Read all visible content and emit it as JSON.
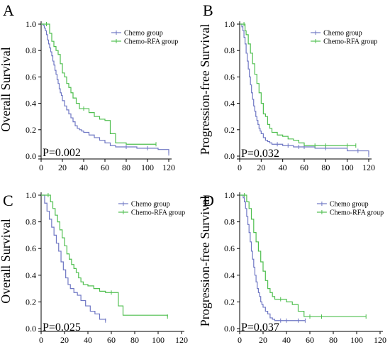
{
  "colors": {
    "chemo": "#6f77c4",
    "chemo_rfa": "#4fbf4f",
    "axis": "#000000"
  },
  "chart_data": [
    {
      "type": "line",
      "panel_letter": "A",
      "ylabel": "Overall Survival",
      "p_value": "P=0.002",
      "xlim": [
        0,
        120
      ],
      "ylim": [
        0,
        1.0
      ],
      "x_ticks": [
        "0",
        "20",
        "40",
        "60",
        "80",
        "100",
        "120"
      ],
      "y_ticks": [
        "0.0",
        "0.2",
        "0.4",
        "0.6",
        "0.8",
        "1.0"
      ],
      "legend_position": "top-right",
      "series": [
        {
          "name": "Chemo group",
          "color_key": "chemo",
          "x": [
            0,
            2,
            3,
            4,
            5,
            6,
            7,
            8,
            9,
            10,
            11,
            12,
            13,
            14,
            15,
            16,
            17,
            18,
            19,
            20,
            22,
            24,
            26,
            28,
            30,
            32,
            34,
            36,
            38,
            40,
            45,
            50,
            55,
            60,
            65,
            70,
            80,
            90,
            100,
            110,
            120
          ],
          "y": [
            1.0,
            0.99,
            0.97,
            0.95,
            0.92,
            0.88,
            0.85,
            0.82,
            0.79,
            0.76,
            0.72,
            0.69,
            0.65,
            0.62,
            0.58,
            0.55,
            0.51,
            0.48,
            0.46,
            0.42,
            0.38,
            0.35,
            0.32,
            0.29,
            0.26,
            0.23,
            0.21,
            0.2,
            0.19,
            0.18,
            0.16,
            0.14,
            0.12,
            0.1,
            0.08,
            0.07,
            0.07,
            0.06,
            0.06,
            0.05,
            0.02
          ]
        },
        {
          "name": "Chemo-RFA group",
          "color_key": "chemo_rfa",
          "x": [
            0,
            5,
            8,
            10,
            12,
            14,
            16,
            18,
            20,
            22,
            24,
            26,
            28,
            30,
            33,
            36,
            40,
            45,
            50,
            55,
            60,
            65,
            70,
            80,
            108
          ],
          "y": [
            1.0,
            1.0,
            0.93,
            0.87,
            0.83,
            0.8,
            0.77,
            0.7,
            0.63,
            0.6,
            0.55,
            0.52,
            0.48,
            0.44,
            0.4,
            0.36,
            0.36,
            0.33,
            0.3,
            0.28,
            0.27,
            0.17,
            0.1,
            0.09,
            0.09
          ]
        }
      ]
    },
    {
      "type": "line",
      "panel_letter": "B",
      "ylabel": "Progression-free Survival",
      "p_value": "P=0.032",
      "xlim": [
        0,
        120
      ],
      "ylim": [
        0,
        1.0
      ],
      "x_ticks": [
        "0",
        "20",
        "40",
        "60",
        "80",
        "100",
        "120"
      ],
      "y_ticks": [
        "0.0",
        "0.2",
        "0.4",
        "0.6",
        "0.8",
        "1.0"
      ],
      "legend_position": "top-right",
      "series": [
        {
          "name": "Chemo group",
          "color_key": "chemo",
          "x": [
            0,
            2,
            3,
            4,
            5,
            6,
            7,
            8,
            9,
            10,
            11,
            12,
            13,
            14,
            15,
            16,
            17,
            18,
            19,
            20,
            22,
            24,
            26,
            28,
            30,
            35,
            40,
            45,
            50,
            55,
            60,
            70,
            80,
            100,
            110,
            120
          ],
          "y": [
            1.0,
            0.98,
            0.95,
            0.9,
            0.85,
            0.78,
            0.72,
            0.66,
            0.6,
            0.54,
            0.48,
            0.43,
            0.38,
            0.34,
            0.3,
            0.27,
            0.24,
            0.21,
            0.19,
            0.17,
            0.14,
            0.12,
            0.11,
            0.1,
            0.09,
            0.09,
            0.08,
            0.08,
            0.07,
            0.07,
            0.07,
            0.06,
            0.06,
            0.04,
            0.04,
            0.01
          ]
        },
        {
          "name": "Chemo-RFA group",
          "color_key": "chemo_rfa",
          "x": [
            0,
            4,
            5,
            6,
            8,
            10,
            12,
            14,
            16,
            18,
            20,
            22,
            24,
            26,
            28,
            30,
            35,
            40,
            45,
            50,
            55,
            60,
            70,
            80,
            100,
            108
          ],
          "y": [
            1.0,
            1.0,
            0.95,
            0.92,
            0.85,
            0.78,
            0.7,
            0.62,
            0.55,
            0.48,
            0.4,
            0.32,
            0.3,
            0.24,
            0.21,
            0.18,
            0.16,
            0.15,
            0.13,
            0.12,
            0.1,
            0.08,
            0.08,
            0.08,
            0.08,
            0.08
          ]
        }
      ]
    },
    {
      "type": "line",
      "panel_letter": "C",
      "ylabel": "Overall Survival",
      "p_value": "P=0.025",
      "xlim": [
        0,
        120
      ],
      "ylim": [
        0,
        1.0
      ],
      "x_ticks": [
        "0",
        "20",
        "40",
        "60",
        "80",
        "100",
        "120"
      ],
      "y_ticks": [
        "0.0",
        "0.2",
        "0.4",
        "0.6",
        "0.8",
        "1.0"
      ],
      "legend_position": "top-right",
      "series": [
        {
          "name": "Chemo group",
          "color_key": "chemo",
          "x": [
            0,
            3,
            5,
            7,
            9,
            11,
            13,
            15,
            17,
            19,
            21,
            23,
            25,
            28,
            31,
            34,
            38,
            42,
            46,
            50,
            55
          ],
          "y": [
            1.0,
            0.94,
            0.88,
            0.82,
            0.76,
            0.7,
            0.64,
            0.58,
            0.5,
            0.44,
            0.38,
            0.33,
            0.3,
            0.27,
            0.25,
            0.21,
            0.17,
            0.13,
            0.11,
            0.07,
            0.06
          ]
        },
        {
          "name": "Chemo-RFA group",
          "color_key": "chemo_rfa",
          "x": [
            0,
            6,
            8,
            10,
            12,
            14,
            16,
            18,
            20,
            22,
            24,
            26,
            28,
            30,
            32,
            34,
            36,
            40,
            45,
            50,
            55,
            60,
            66,
            70,
            108
          ],
          "y": [
            1.0,
            1.0,
            0.95,
            0.9,
            0.85,
            0.8,
            0.74,
            0.68,
            0.62,
            0.56,
            0.52,
            0.48,
            0.45,
            0.42,
            0.38,
            0.35,
            0.33,
            0.32,
            0.3,
            0.28,
            0.27,
            0.27,
            0.17,
            0.1,
            0.09
          ]
        }
      ]
    },
    {
      "type": "line",
      "panel_letter": "D",
      "ylabel": "Progression-free Survival",
      "p_value": "P=0.037",
      "xlim": [
        0,
        120
      ],
      "ylim": [
        0,
        1.0
      ],
      "x_ticks": [
        "0",
        "20",
        "40",
        "60",
        "80",
        "100",
        "120"
      ],
      "y_ticks": [
        "0.0",
        "0.2",
        "0.4",
        "0.6",
        "0.8",
        "1.0"
      ],
      "legend_position": "top-right",
      "series": [
        {
          "name": "Chemo group",
          "color_key": "chemo",
          "x": [
            0,
            3,
            4,
            5,
            6,
            7,
            8,
            9,
            10,
            11,
            12,
            13,
            14,
            15,
            16,
            17,
            18,
            19,
            20,
            22,
            24,
            26,
            28,
            30,
            35,
            40,
            50,
            56
          ],
          "y": [
            1.0,
            0.98,
            0.95,
            0.9,
            0.84,
            0.78,
            0.72,
            0.65,
            0.58,
            0.52,
            0.46,
            0.4,
            0.35,
            0.3,
            0.27,
            0.24,
            0.2,
            0.18,
            0.16,
            0.13,
            0.11,
            0.08,
            0.07,
            0.06,
            0.06,
            0.06,
            0.06,
            0.06
          ]
        },
        {
          "name": "Chemo-RFA group",
          "color_key": "chemo_rfa",
          "x": [
            0,
            4,
            6,
            8,
            10,
            12,
            14,
            16,
            18,
            20,
            22,
            24,
            26,
            28,
            30,
            35,
            40,
            45,
            50,
            55,
            60,
            70,
            108
          ],
          "y": [
            1.0,
            1.0,
            0.95,
            0.9,
            0.82,
            0.72,
            0.65,
            0.58,
            0.5,
            0.43,
            0.36,
            0.3,
            0.27,
            0.24,
            0.22,
            0.22,
            0.2,
            0.18,
            0.13,
            0.09,
            0.09,
            0.09,
            0.09
          ]
        }
      ]
    }
  ]
}
